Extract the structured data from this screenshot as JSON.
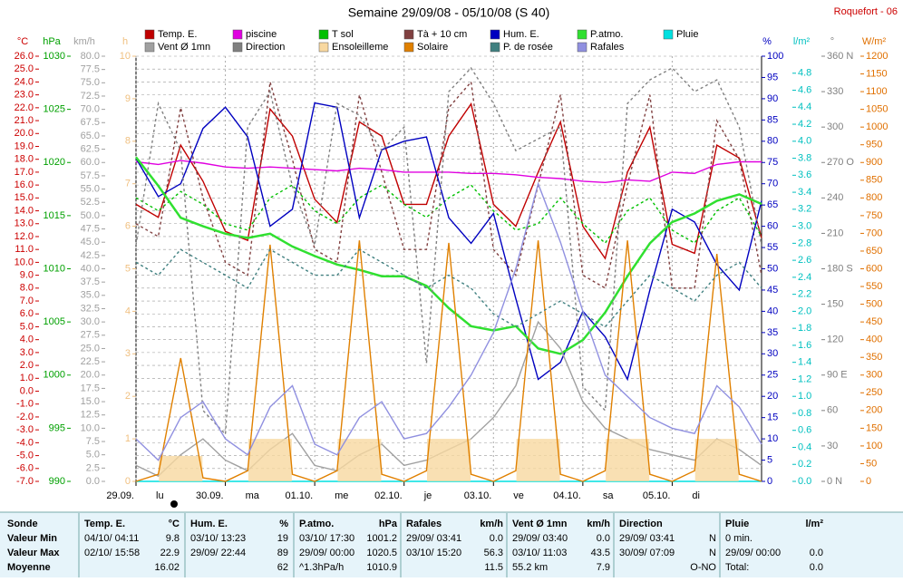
{
  "chart_data": {
    "type": "line",
    "title": "Semaine 29/09/08 - 05/10/08 (S 40)",
    "station": "Roquefort - 06",
    "grid": true,
    "days": [
      [
        "29.09.",
        "lu"
      ],
      [
        "30.09.",
        "ma"
      ],
      [
        "01.10.",
        "me"
      ],
      [
        "02.10.",
        "je"
      ],
      [
        "03.10.",
        "ve"
      ],
      [
        "04.10.",
        "sa"
      ],
      [
        "05.10.",
        "di"
      ]
    ],
    "axes": {
      "c": {
        "label": "°C",
        "color": "#cc0000",
        "lim": [
          -7,
          26
        ],
        "ticks": [
          {
            "value": 26,
            "label": "26.0"
          },
          {
            "value": 25,
            "label": "25.0"
          },
          {
            "value": 24,
            "label": "24.0"
          },
          {
            "value": 23,
            "label": "23.0"
          },
          {
            "value": 22,
            "label": "22.0"
          },
          {
            "value": 21,
            "label": "21.0"
          },
          {
            "value": 20,
            "label": "20.0"
          },
          {
            "value": 19,
            "label": "19.0"
          },
          {
            "value": 18,
            "label": "18.0"
          },
          {
            "value": 17,
            "label": "17.0"
          },
          {
            "value": 16,
            "label": "16.0"
          },
          {
            "value": 15,
            "label": "15.0"
          },
          {
            "value": 14,
            "label": "14.0"
          },
          {
            "value": 13,
            "label": "13.0"
          },
          {
            "value": 12,
            "label": "12.0"
          },
          {
            "value": 11,
            "label": "11.0"
          },
          {
            "value": 10,
            "label": "10.0"
          },
          {
            "value": 9,
            "label": "9.0"
          },
          {
            "value": 8,
            "label": "8.0"
          },
          {
            "value": 7,
            "label": "7.0"
          },
          {
            "value": 6,
            "label": "6.0"
          },
          {
            "value": 5,
            "label": "5.0"
          },
          {
            "value": 4,
            "label": "4.0"
          },
          {
            "value": 3,
            "label": "3.0"
          },
          {
            "value": 2,
            "label": "2.0"
          },
          {
            "value": 1,
            "label": "1.0"
          },
          {
            "value": 0,
            "label": "0.0"
          },
          {
            "value": -1,
            "label": "-1.0"
          },
          {
            "value": -2,
            "label": "-2.0"
          },
          {
            "value": -3,
            "label": "-3.0"
          },
          {
            "value": -4,
            "label": "-4.0"
          },
          {
            "value": -5,
            "label": "-5.0"
          },
          {
            "value": -6,
            "label": "-6.0"
          },
          {
            "value": -7,
            "label": "-7.0"
          }
        ]
      },
      "hpa": {
        "label": "hPa",
        "color": "#00a000",
        "lim": [
          990,
          1030
        ],
        "ticks": [
          1030,
          1025,
          1020,
          1015,
          1010,
          1005,
          1000,
          995,
          990
        ]
      },
      "kmh": {
        "label": "km/h",
        "color": "#a0a0a0",
        "lim": [
          0,
          80
        ],
        "ticks": [
          {
            "value": 80,
            "label": "80.0"
          },
          77.5,
          {
            "value": 75,
            "label": "75.0"
          },
          72.5,
          {
            "value": 70,
            "label": "70.0"
          },
          67.5,
          {
            "value": 65,
            "label": "65.0"
          },
          62.5,
          {
            "value": 60,
            "label": "60.0"
          },
          57.5,
          {
            "value": 55,
            "label": "55.0"
          },
          52.5,
          {
            "value": 50,
            "label": "50.0"
          },
          47.5,
          {
            "value": 45,
            "label": "45.0"
          },
          42.5,
          {
            "value": 40,
            "label": "40.0"
          },
          37.5,
          {
            "value": 35,
            "label": "35.0"
          },
          32.5,
          {
            "value": 30,
            "label": "30.0"
          },
          27.5,
          {
            "value": 25,
            "label": "25.0"
          },
          22.5,
          {
            "value": 20,
            "label": "20.0"
          },
          17.5,
          {
            "value": 15,
            "label": "15.0"
          },
          12.5,
          {
            "value": 10,
            "label": "10.0"
          },
          7.5,
          {
            "value": 5,
            "label": "5.0"
          },
          2.5,
          {
            "value": 0,
            "label": "0.0"
          }
        ]
      },
      "h": {
        "label": "h",
        "color": "#f0c080",
        "lim": [
          0,
          10
        ],
        "ticks": [
          10,
          9,
          8,
          7,
          6,
          5,
          4,
          3,
          2,
          1,
          0
        ]
      },
      "pct": {
        "label": "%",
        "color": "#0000c0",
        "lim": [
          0,
          100
        ],
        "ticks": [
          100,
          95,
          90,
          85,
          80,
          75,
          70,
          65,
          60,
          55,
          50,
          45,
          40,
          35,
          30,
          25,
          20,
          15,
          10,
          5,
          0
        ]
      },
      "lm2": {
        "label": "l/m²",
        "color": "#00c0c0",
        "lim": [
          0,
          5
        ],
        "ticks": [
          4.8,
          4.6,
          4.4,
          4.2,
          {
            "value": 4,
            "label": "4.0"
          },
          3.8,
          3.6,
          3.4,
          3.2,
          {
            "value": 3,
            "label": "3.0"
          },
          2.8,
          2.6,
          2.4,
          2.2,
          {
            "value": 2,
            "label": "2.0"
          },
          1.8,
          1.6,
          1.4,
          1.2,
          {
            "value": 1,
            "label": "1.0"
          },
          0.8,
          0.6,
          0.4,
          0.2,
          {
            "value": 0,
            "label": "0.0"
          }
        ]
      },
      "deg": {
        "label": "°",
        "color": "#808080",
        "lim": [
          0,
          360
        ],
        "ticks": [
          {
            "value": 360,
            "label": "360 N"
          },
          330,
          300,
          {
            "value": 270,
            "label": "270 O"
          },
          240,
          210,
          {
            "value": 180,
            "label": "180 S"
          },
          150,
          120,
          {
            "value": 90,
            "label": "90 E"
          },
          60,
          30,
          {
            "value": 0,
            "label": "0 N"
          }
        ]
      },
      "wm2": {
        "label": "W/m²",
        "color": "#e07000",
        "lim": [
          0,
          1200
        ],
        "ticks": [
          1200,
          1150,
          1100,
          1050,
          1000,
          950,
          900,
          850,
          800,
          750,
          700,
          650,
          600,
          550,
          500,
          450,
          400,
          350,
          300,
          250,
          200,
          150,
          100,
          50,
          0
        ]
      }
    },
    "series": [
      {
        "name": "Temp. E.",
        "color": "#c00000",
        "axis": "c",
        "values": [
          14.5,
          13.5,
          19.1,
          16.3,
          12.4,
          11.7,
          21.9,
          19.8,
          14.9,
          13.1,
          20.9,
          19.8,
          14.5,
          14.5,
          19.8,
          22.3,
          14.5,
          12.8,
          17.0,
          20.9,
          12.8,
          10.3,
          17.0,
          20.5,
          11.4,
          10.7,
          19.1,
          18.1,
          11.9
        ]
      },
      {
        "name": "piscine",
        "color": "#e000e0",
        "axis": "c",
        "values": [
          17.8,
          17.6,
          17.9,
          17.7,
          17.4,
          17.3,
          17.4,
          17.3,
          17.2,
          17.1,
          17.3,
          17.2,
          17.0,
          17.0,
          17.0,
          16.9,
          16.9,
          16.8,
          16.6,
          16.5,
          16.3,
          16.2,
          16.4,
          16.3,
          17.0,
          16.9,
          17.6,
          17.8,
          17.8
        ]
      },
      {
        "name": "T sol",
        "color": "#00c000",
        "axis": "c",
        "dash": true,
        "values": [
          15,
          14,
          15.5,
          14.5,
          13,
          12.5,
          15,
          16,
          14,
          13,
          15,
          16,
          14.5,
          13.5,
          15,
          16,
          14,
          12.5,
          13,
          15,
          13,
          11.5,
          14,
          15,
          12.5,
          11.5,
          14,
          15,
          12
        ]
      },
      {
        "name": "Tà + 10 cm",
        "color": "#804040",
        "axis": "c",
        "dash": true,
        "values": [
          13,
          12,
          22,
          15,
          10,
          9,
          24,
          18,
          11,
          10,
          23,
          17,
          11,
          11,
          22,
          24,
          11,
          9,
          16,
          23,
          9,
          8,
          16,
          23,
          8,
          8,
          21,
          18,
          9
        ]
      },
      {
        "name": "Hum. E.",
        "color": "#0000c0",
        "axis": "pct",
        "values": [
          76,
          67,
          70,
          83,
          88,
          81,
          60,
          64,
          89,
          88,
          62,
          78,
          80,
          81,
          62,
          56,
          63,
          43,
          24,
          28,
          40,
          34,
          24,
          45,
          64,
          61,
          51,
          45,
          66
        ]
      },
      {
        "name": "P.atmo.",
        "color": "#30e030",
        "axis": "hpa",
        "width": 2.5,
        "values": [
          1020.5,
          1017.8,
          1014.8,
          1014.0,
          1013.3,
          1012.9,
          1013.3,
          1012.1,
          1011.2,
          1010.4,
          1009.9,
          1009.3,
          1009.3,
          1008.4,
          1006.3,
          1004.6,
          1004.2,
          1004.6,
          1002.5,
          1002.0,
          1003.3,
          1005.9,
          1009.3,
          1012.4,
          1014.4,
          1015.2,
          1016.4,
          1017.0,
          1016.1
        ]
      },
      {
        "name": "Pluie",
        "color": "#00e0e0",
        "axis": "lm2",
        "values": [
          0,
          0,
          0,
          0,
          0,
          0,
          0,
          0,
          0,
          0,
          0,
          0,
          0,
          0,
          0,
          0,
          0,
          0,
          0,
          0,
          0,
          0,
          0,
          0,
          0,
          0,
          0,
          0,
          0
        ]
      },
      {
        "name": "Vent Ø 1mn",
        "color": "#a0a0a0",
        "axis": "kmh",
        "values": [
          3,
          1,
          5,
          8,
          4,
          2,
          6,
          9,
          3,
          2,
          5,
          7,
          3,
          4,
          6,
          8,
          12,
          18,
          30,
          25,
          15,
          10,
          8,
          6,
          5,
          4,
          8,
          6,
          3
        ]
      },
      {
        "name": "Direction",
        "color": "#808080",
        "axis": "deg",
        "dash": true,
        "values": [
          200,
          320,
          280,
          60,
          40,
          300,
          330,
          250,
          200,
          320,
          310,
          280,
          300,
          100,
          330,
          350,
          320,
          280,
          290,
          300,
          80,
          60,
          320,
          340,
          350,
          330,
          340,
          300,
          200
        ]
      },
      {
        "name": "Ensoleilleme",
        "color": "#f8d8a0",
        "axis": "h",
        "style": "bars",
        "values": [
          0,
          0,
          0.6,
          0,
          0,
          0,
          1,
          0,
          0,
          0,
          1,
          0,
          0,
          0,
          1,
          0,
          0,
          0,
          1,
          0,
          0,
          0,
          1,
          0,
          0,
          0,
          1,
          0,
          0
        ]
      },
      {
        "name": "Solaire",
        "color": "#e08000",
        "axis": "wm2",
        "values": [
          0,
          20,
          348,
          10,
          0,
          30,
          668,
          20,
          0,
          30,
          680,
          20,
          0,
          30,
          673,
          20,
          0,
          30,
          680,
          20,
          0,
          30,
          680,
          20,
          0,
          30,
          642,
          20,
          0
        ]
      },
      {
        "name": "P. de rosée",
        "color": "#408080",
        "axis": "c",
        "dash": true,
        "values": [
          10,
          9,
          11,
          10,
          9,
          8,
          11,
          10,
          9,
          9,
          11,
          10,
          9,
          8,
          9,
          8,
          6,
          5,
          6,
          7,
          6,
          5,
          7,
          9,
          8,
          7,
          9,
          10,
          8
        ]
      },
      {
        "name": "Rafales",
        "color": "#9090e0",
        "axis": "kmh",
        "values": [
          8,
          4,
          12,
          15,
          8,
          5,
          14,
          18,
          7,
          5,
          12,
          15,
          8,
          9,
          14,
          20,
          28,
          40,
          56,
          45,
          32,
          20,
          16,
          12,
          10,
          9,
          18,
          14,
          7
        ]
      }
    ]
  },
  "table": {
    "label_col": [
      "Sonde",
      "Valeur Min",
      "Valeur Max",
      "Moyenne"
    ],
    "groups": [
      {
        "name": "Temp. E.",
        "unit": "°C",
        "rows": [
          [
            "04/10/ 04:11",
            "9.8"
          ],
          [
            "02/10/ 15:58",
            "22.9"
          ],
          [
            null,
            "16.02"
          ]
        ]
      },
      {
        "name": "Hum. E.",
        "unit": "%",
        "rows": [
          [
            "03/10/ 13:23",
            "19"
          ],
          [
            "29/09/ 22:44",
            "89"
          ],
          [
            null,
            "62"
          ]
        ]
      },
      {
        "name": "P.atmo.",
        "unit": "hPa",
        "rows": [
          [
            "03/10/ 17:30",
            "1001.2"
          ],
          [
            "29/09/ 00:00",
            "1020.5"
          ],
          [
            "^1.3hPa/h",
            "1010.9"
          ]
        ]
      },
      {
        "name": "Rafales",
        "unit": "km/h",
        "rows": [
          [
            "29/09/ 03:41",
            "0.0"
          ],
          [
            "03/10/ 15:20",
            "56.3"
          ],
          [
            null,
            "11.5"
          ]
        ]
      },
      {
        "name": "Vent Ø 1mn",
        "unit": "km/h",
        "rows": [
          [
            "29/09/ 03:40",
            "0.0"
          ],
          [
            "03/10/ 11:03",
            "43.5"
          ],
          [
            "55.2 km",
            "7.9"
          ]
        ]
      },
      {
        "name": "Direction",
        "unit": null,
        "rows": [
          [
            "29/09/ 03:41",
            "N"
          ],
          [
            "30/09/ 07:09",
            "N"
          ],
          [
            null,
            "O-NO"
          ]
        ]
      },
      {
        "name": "Pluie",
        "unit": "l/m²",
        "rows": [
          [
            "0 min."
          ],
          [
            "29/09/ 00:00",
            "0.0"
          ],
          [
            "Total:",
            "0.0"
          ]
        ]
      }
    ]
  }
}
